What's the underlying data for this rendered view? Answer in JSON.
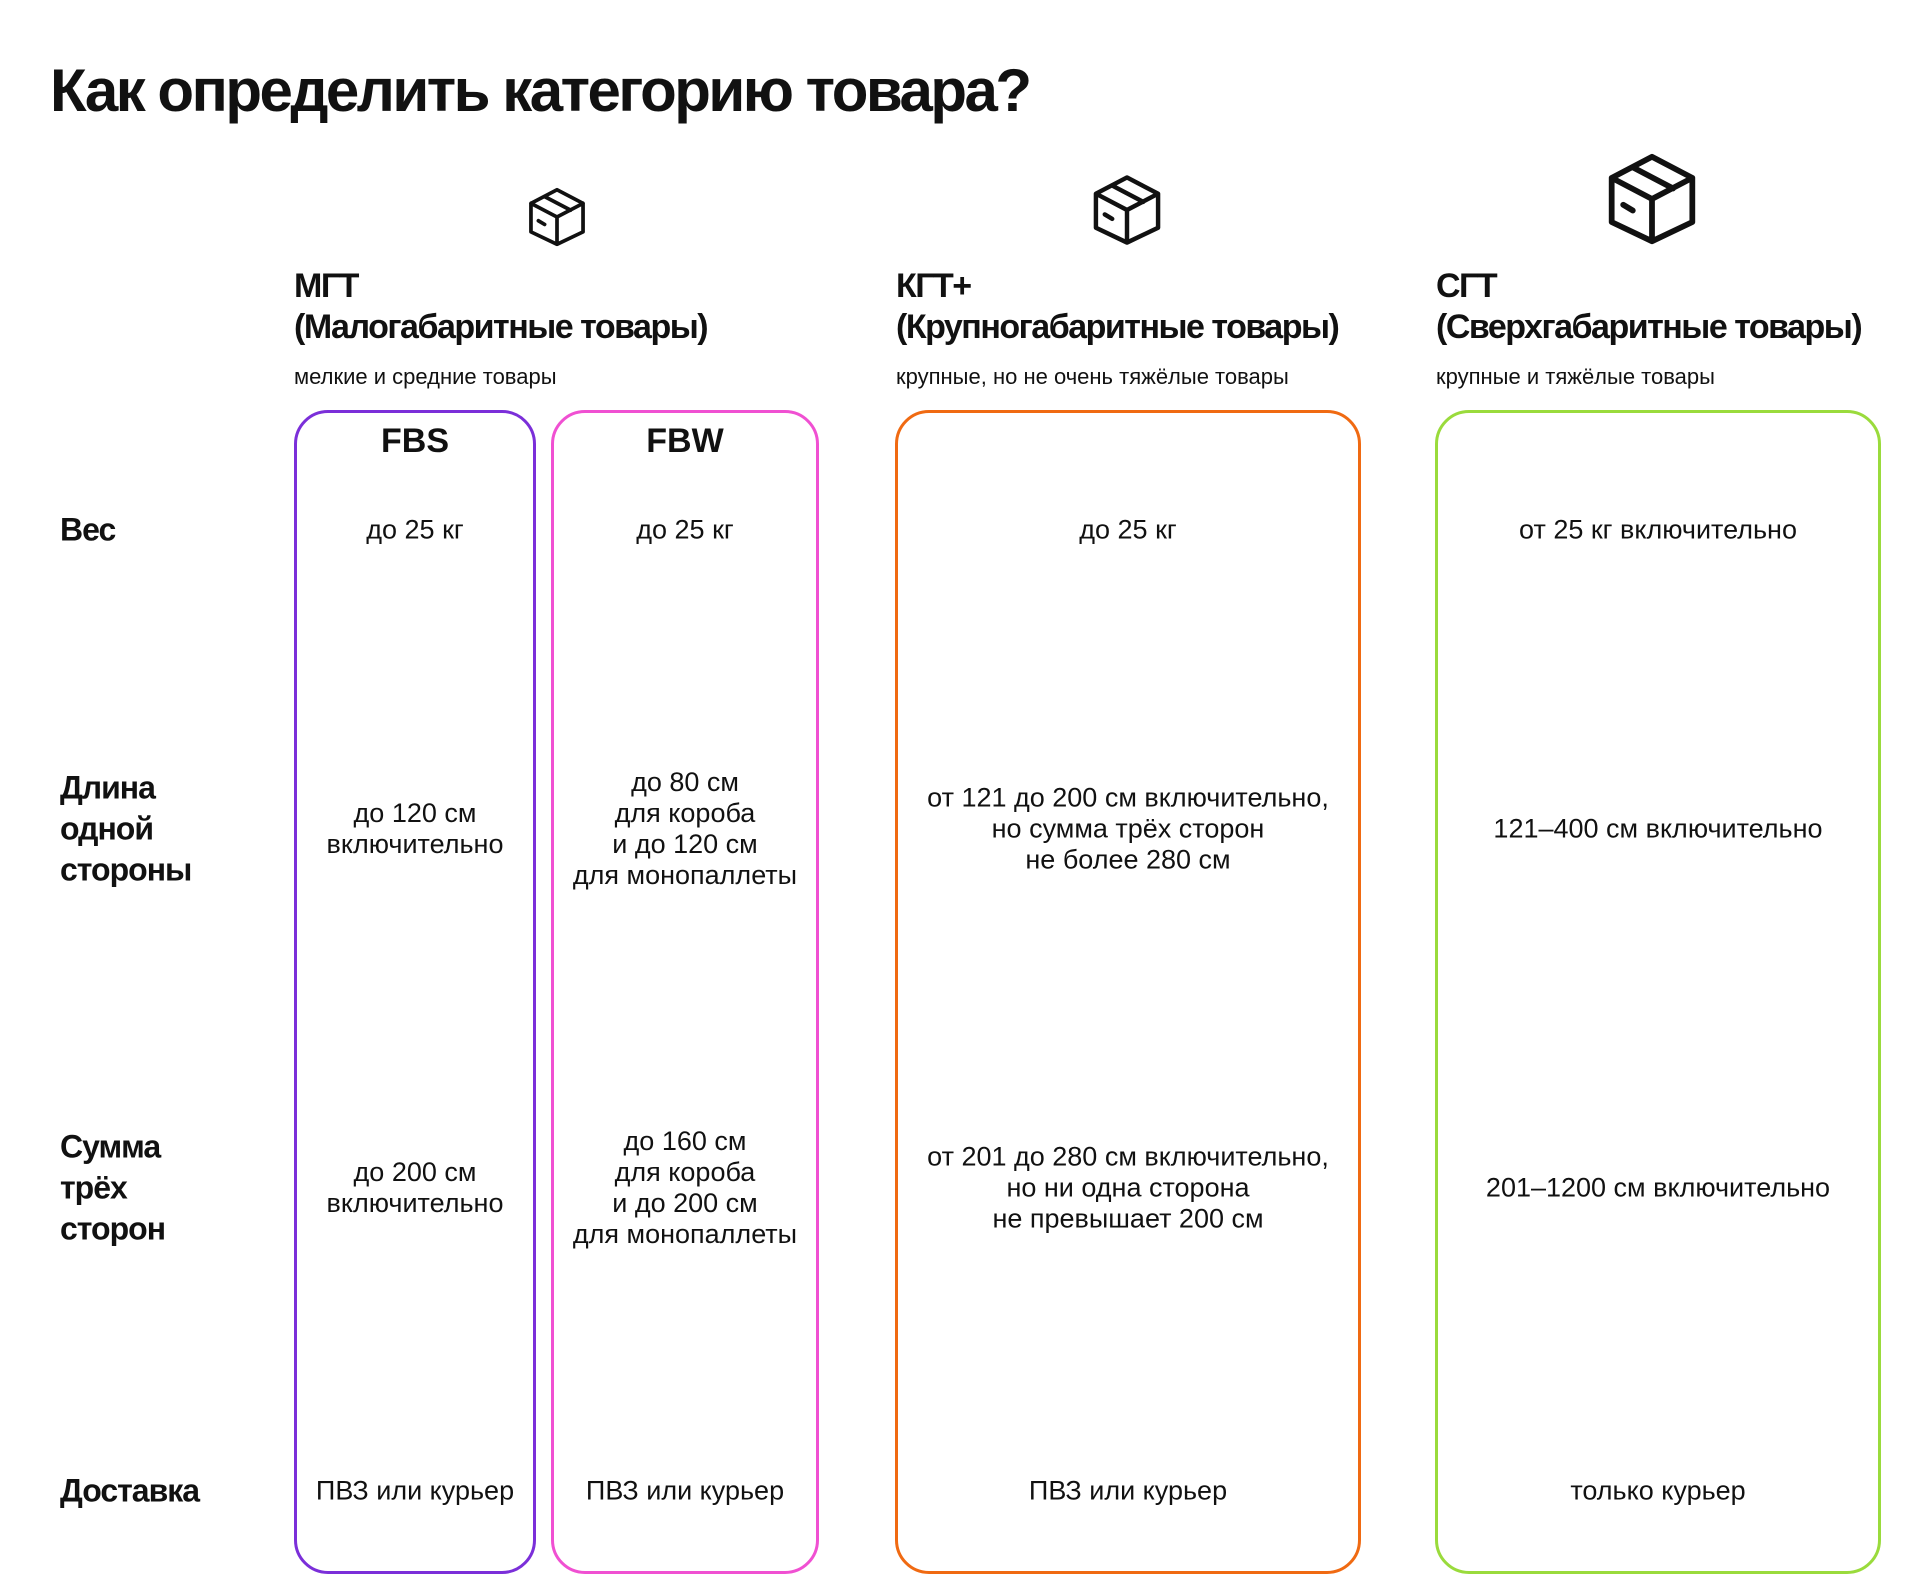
{
  "title": "Как определить категорию товара?",
  "colors": {
    "fbs": "#7B2FD9",
    "fbw": "#F050D2",
    "kgt": "#F06A12",
    "sgt": "#9ADB3C"
  },
  "categories": [
    {
      "icon": "box-icon",
      "code": "МГТ",
      "name": "(Малогабаритные товары)",
      "desc": "мелкие и средние товары"
    },
    {
      "icon": "box-icon",
      "code": "КГТ+",
      "name": "(Крупногабаритные товары)",
      "desc": "крупные, но не очень тяжёлые товары"
    },
    {
      "icon": "box-icon",
      "code": "СГТ",
      "name": "(Сверхгабаритные товары)",
      "desc": "крупные и тяжёлые товары"
    }
  ],
  "subcolumns": {
    "fbs": "FBS",
    "fbw": "FBW"
  },
  "rows": [
    {
      "label": "Вес",
      "fbs": "до 25 кг",
      "fbw": "до 25 кг",
      "kgt": "до 25 кг",
      "sgt": "от 25 кг включительно"
    },
    {
      "label": "Длина\nодной\nстороны",
      "fbs": "до 120 см\nвключительно",
      "fbw": "до 80 см\nдля короба\nи до 120 см\nдля монопаллеты",
      "kgt": "от 121 до 200 см включительно,\nно сумма трёх сторон\nне более 280 см",
      "sgt": "121–400 см включительно"
    },
    {
      "label": "Сумма\nтрёх\nсторон",
      "fbs": "до 200 см\nвключительно",
      "fbw": "до 160 см\nдля короба\nи до 200 см\nдля монопаллеты",
      "kgt": "от 201 до 280 см включительно,\nно ни одна сторона\nне превышает 200 см",
      "sgt": "201–1200 см включительно"
    },
    {
      "label": "Доставка",
      "fbs": "ПВЗ или курьер",
      "fbw": "ПВЗ или курьер",
      "kgt": "ПВЗ или курьер",
      "sgt": "только курьер"
    }
  ]
}
